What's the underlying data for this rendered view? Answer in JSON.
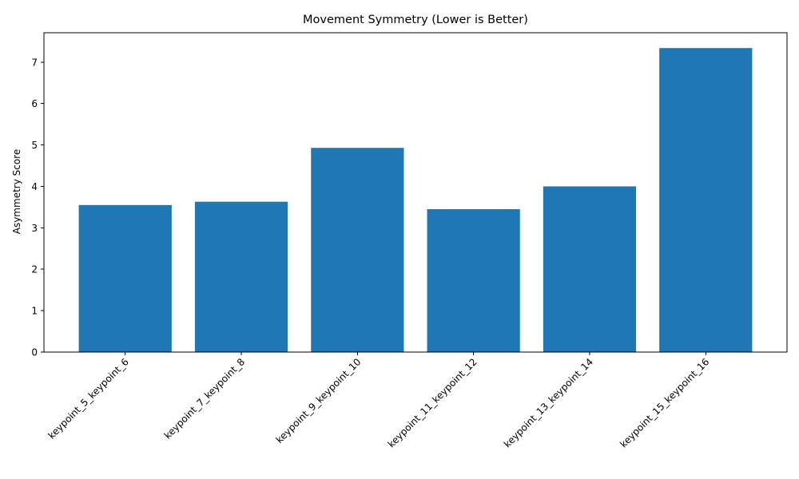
{
  "chart_data": {
    "type": "bar",
    "title": "Movement Symmetry (Lower is Better)",
    "xlabel": "",
    "ylabel": "Asymmetry Score",
    "categories": [
      "keypoint_5_keypoint_6",
      "keypoint_7_keypoint_8",
      "keypoint_9_keypoint_10",
      "keypoint_11_keypoint_12",
      "keypoint_13_keypoint_14",
      "keypoint_15_keypoint_16"
    ],
    "values": [
      3.55,
      3.63,
      4.93,
      3.45,
      4.0,
      7.34
    ],
    "ylim": [
      0,
      7.71
    ],
    "yticks": [
      "0",
      "1",
      "2",
      "3",
      "4",
      "5",
      "6",
      "7"
    ],
    "bar_color": "#1f77b4",
    "grid": false,
    "legend": "none"
  }
}
